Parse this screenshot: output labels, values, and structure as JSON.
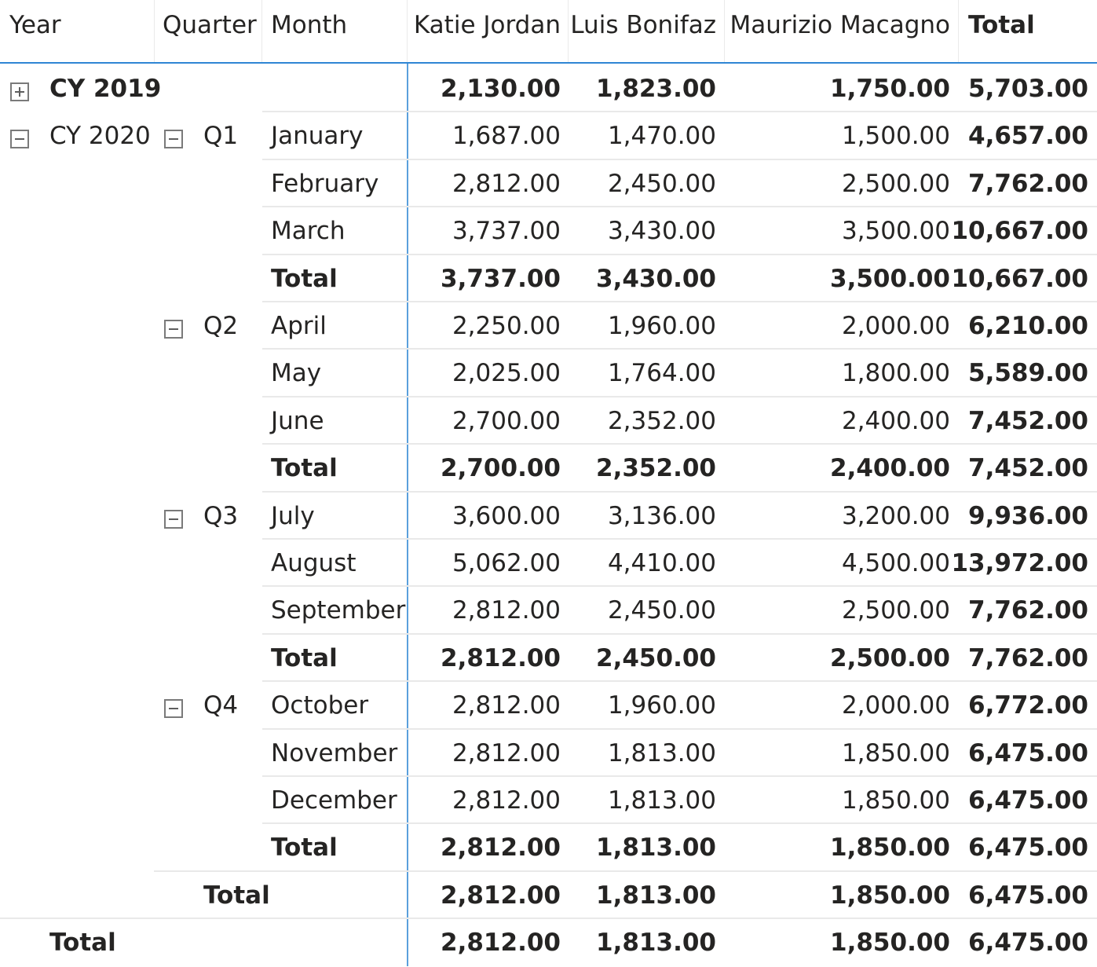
{
  "header": {
    "year": "Year",
    "quarter": "Quarter",
    "month": "Month",
    "people": [
      "Katie Jordan",
      "Luis Bonifaz",
      "Maurizio Macagno"
    ],
    "total": "Total"
  },
  "icons": {
    "expand": "plus-square-icon",
    "collapse": "minus-square-icon"
  },
  "colors": {
    "accent": "#2f86d4",
    "grid": "#e9e9e9",
    "text": "#252423"
  },
  "rows": [
    {
      "kind": "year",
      "toggle": "expand",
      "label": "CY 2019",
      "bold": true,
      "values": [
        "2,130.00",
        "1,823.00",
        "1,750.00",
        "5,703.00"
      ]
    },
    {
      "kind": "month",
      "year": "CY 2020",
      "yearToggle": "collapse",
      "quarter": "Q1",
      "quarterToggle": "collapse",
      "label": "January",
      "values": [
        "1,687.00",
        "1,470.00",
        "1,500.00",
        "4,657.00"
      ]
    },
    {
      "kind": "month",
      "label": "February",
      "values": [
        "2,812.00",
        "2,450.00",
        "2,500.00",
        "7,762.00"
      ]
    },
    {
      "kind": "month",
      "label": "March",
      "values": [
        "3,737.00",
        "3,430.00",
        "3,500.00",
        "10,667.00"
      ]
    },
    {
      "kind": "qtotal",
      "label": "Total",
      "bold": true,
      "values": [
        "3,737.00",
        "3,430.00",
        "3,500.00",
        "10,667.00"
      ]
    },
    {
      "kind": "month",
      "quarter": "Q2",
      "quarterToggle": "collapse",
      "label": "April",
      "values": [
        "2,250.00",
        "1,960.00",
        "2,000.00",
        "6,210.00"
      ]
    },
    {
      "kind": "month",
      "label": "May",
      "values": [
        "2,025.00",
        "1,764.00",
        "1,800.00",
        "5,589.00"
      ]
    },
    {
      "kind": "month",
      "label": "June",
      "values": [
        "2,700.00",
        "2,352.00",
        "2,400.00",
        "7,452.00"
      ]
    },
    {
      "kind": "qtotal",
      "label": "Total",
      "bold": true,
      "values": [
        "2,700.00",
        "2,352.00",
        "2,400.00",
        "7,452.00"
      ]
    },
    {
      "kind": "month",
      "quarter": "Q3",
      "quarterToggle": "collapse",
      "label": "July",
      "values": [
        "3,600.00",
        "3,136.00",
        "3,200.00",
        "9,936.00"
      ]
    },
    {
      "kind": "month",
      "label": "August",
      "values": [
        "5,062.00",
        "4,410.00",
        "4,500.00",
        "13,972.00"
      ]
    },
    {
      "kind": "month",
      "label": "September",
      "values": [
        "2,812.00",
        "2,450.00",
        "2,500.00",
        "7,762.00"
      ]
    },
    {
      "kind": "qtotal",
      "label": "Total",
      "bold": true,
      "values": [
        "2,812.00",
        "2,450.00",
        "2,500.00",
        "7,762.00"
      ]
    },
    {
      "kind": "month",
      "quarter": "Q4",
      "quarterToggle": "collapse",
      "label": "October",
      "values": [
        "2,812.00",
        "1,960.00",
        "2,000.00",
        "6,772.00"
      ]
    },
    {
      "kind": "month",
      "label": "November",
      "values": [
        "2,812.00",
        "1,813.00",
        "1,850.00",
        "6,475.00"
      ]
    },
    {
      "kind": "month",
      "label": "December",
      "values": [
        "2,812.00",
        "1,813.00",
        "1,850.00",
        "6,475.00"
      ]
    },
    {
      "kind": "qtotal",
      "label": "Total",
      "bold": true,
      "values": [
        "2,812.00",
        "1,813.00",
        "1,850.00",
        "6,475.00"
      ]
    },
    {
      "kind": "ytotal",
      "label": "Total",
      "bold": true,
      "values": [
        "2,812.00",
        "1,813.00",
        "1,850.00",
        "6,475.00"
      ]
    },
    {
      "kind": "gtotal",
      "label": "Total",
      "bold": true,
      "values": [
        "2,812.00",
        "1,813.00",
        "1,850.00",
        "6,475.00"
      ]
    }
  ]
}
